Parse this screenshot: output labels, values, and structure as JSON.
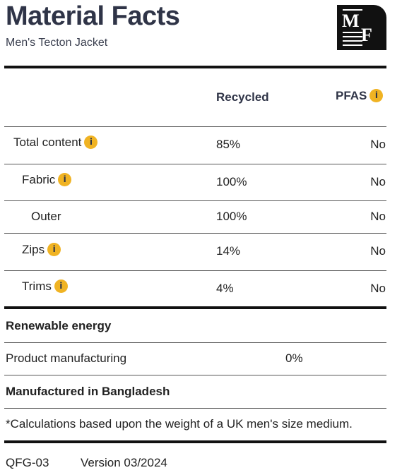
{
  "header": {
    "title": "Material Facts",
    "subtitle": "Men's Tecton Jacket",
    "logo_top": "M",
    "logo_bottom": "F"
  },
  "table": {
    "col_recycled": "Recycled",
    "col_pfas": "PFAS",
    "info_glyph": "i",
    "rows": [
      {
        "label": "Total content",
        "recycled": "85%",
        "pfas": "No"
      },
      {
        "label": "Fabric",
        "recycled": "100%",
        "pfas": "No"
      },
      {
        "label": "Outer",
        "recycled": "100%",
        "pfas": "No"
      },
      {
        "label": "Zips",
        "recycled": "14%",
        "pfas": "No"
      },
      {
        "label": "Trims",
        "recycled": "4%",
        "pfas": "No"
      }
    ]
  },
  "renewable": {
    "heading": "Renewable energy",
    "label": "Product manufacturing",
    "value": "0%"
  },
  "origin": "Manufactured in Bangladesh",
  "footnote": "*Calculations based upon the weight of a UK men's size medium.",
  "footer": {
    "code": "QFG-03",
    "version": "Version 03/2024"
  },
  "colors": {
    "info_badge": "#f0b323",
    "heading_text": "#2f3447"
  }
}
